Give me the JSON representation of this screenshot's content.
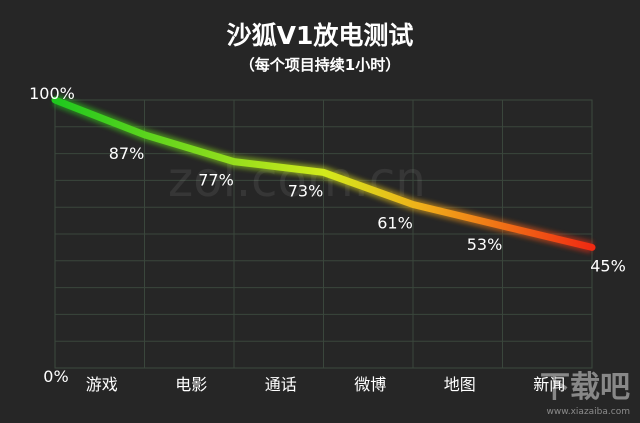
{
  "chart_data": {
    "type": "line",
    "title": "沙狐V1放电测试",
    "subtitle": "（每个项目持续1小时）",
    "categories": [
      "游戏",
      "电影",
      "通话",
      "微博",
      "地图",
      "新闻"
    ],
    "series": [
      {
        "x": [
          0,
          1,
          2,
          3,
          4,
          5,
          6
        ],
        "values": [
          100,
          87,
          77,
          73,
          61,
          53,
          45
        ],
        "labels": [
          "100%",
          "87%",
          "77%",
          "73%",
          "61%",
          "53%",
          "45%"
        ]
      }
    ],
    "y_tick_labels": [
      "100%",
      "0%"
    ],
    "ylim": [
      0,
      100
    ],
    "grid": true,
    "gradient_colors": [
      "#1ec81e",
      "#d2ea1c",
      "#f0b01a",
      "#f02a12"
    ]
  },
  "watermark": "zol.com.cn",
  "logo": {
    "text": "下载吧",
    "url": "www.xiazaiba.com"
  }
}
